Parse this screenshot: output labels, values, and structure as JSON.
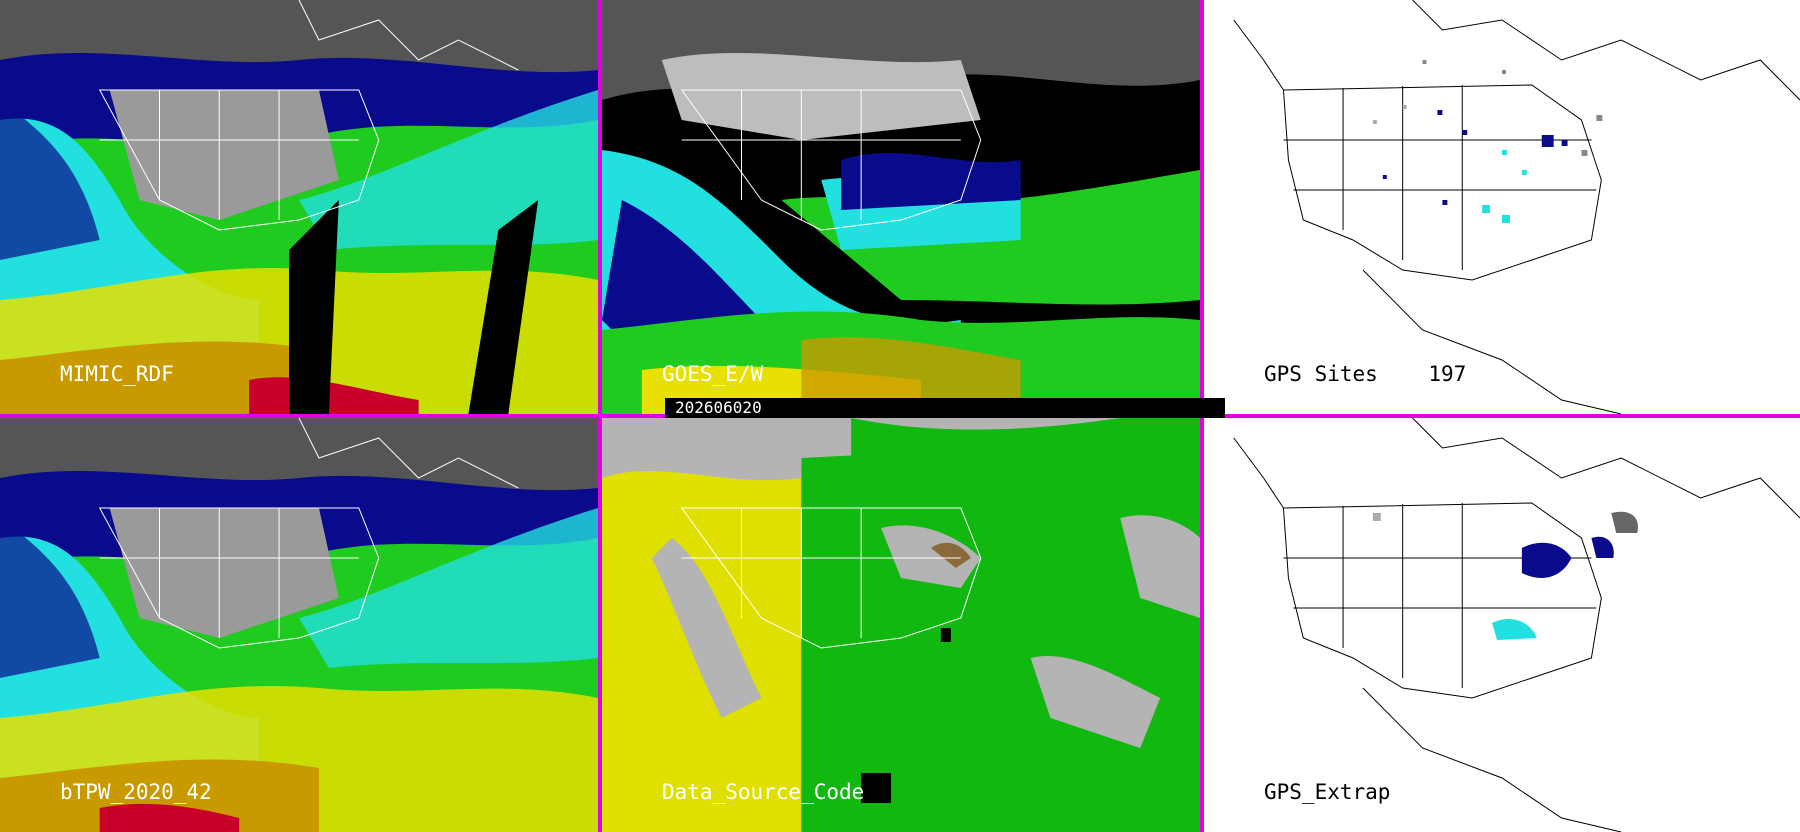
{
  "panels": {
    "mimic_rdf": {
      "label": "MIMIC_RDF"
    },
    "goes_ew": {
      "label": "GOES_E/W"
    },
    "gps_sites": {
      "label": "GPS Sites",
      "count": "197"
    },
    "btpw": {
      "label": "bTPW_2020_42"
    },
    "data_source_code": {
      "label": "Data_Source_Code"
    },
    "gps_extrap": {
      "label": "GPS_Extrap"
    }
  },
  "timestamp": "202606020",
  "colors": {
    "separator": "#e000e0",
    "tpw_dark": "#3a3a3a",
    "tpw_gray": "#9a9a9a",
    "tpw_navy": "#0a0a8c",
    "tpw_blue": "#1e3cff",
    "tpw_cyan": "#22e0e0",
    "tpw_green": "#1ecb1e",
    "tpw_lime": "#7fdc00",
    "tpw_yellow": "#e8e000",
    "tpw_orange": "#c89a00",
    "tpw_red": "#c8002a",
    "source_yellow": "#e0e000",
    "source_green": "#10b810",
    "source_gray": "#b4b4b4"
  }
}
